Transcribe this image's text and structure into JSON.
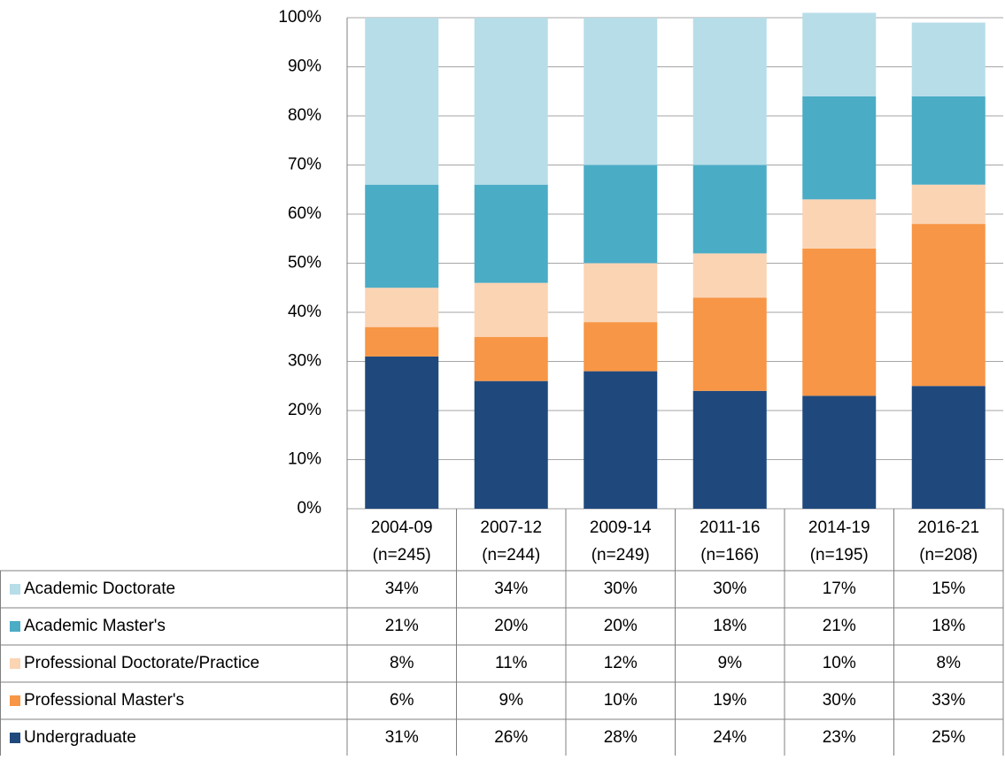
{
  "chart_data": {
    "type": "stacked_bar",
    "categories": [
      "2004-09",
      "2007-12",
      "2009-14",
      "2011-16",
      "2014-19",
      "2016-21"
    ],
    "category_sublabels": [
      "(n=245)",
      "(n=244)",
      "(n=249)",
      "(n=166)",
      "(n=195)",
      "(n=208)"
    ],
    "series": [
      {
        "name": "Undergraduate",
        "color": "#1f497d",
        "values": [
          31,
          26,
          28,
          24,
          23,
          25
        ],
        "value_labels": [
          "31%",
          "26%",
          "28%",
          "24%",
          "23%",
          "25%"
        ]
      },
      {
        "name": "Professional Master's",
        "color": "#f79646",
        "values": [
          6,
          9,
          10,
          19,
          30,
          33
        ],
        "value_labels": [
          "6%",
          "9%",
          "10%",
          "19%",
          "30%",
          "33%"
        ]
      },
      {
        "name": "Professional Doctorate/Practice",
        "color": "#fbd4b4",
        "values": [
          8,
          11,
          12,
          9,
          10,
          8
        ],
        "value_labels": [
          "8%",
          "11%",
          "12%",
          "9%",
          "10%",
          "8%"
        ]
      },
      {
        "name": "Academic Master's",
        "color": "#4bacc6",
        "values": [
          21,
          20,
          20,
          18,
          21,
          18
        ],
        "value_labels": [
          "21%",
          "20%",
          "20%",
          "18%",
          "21%",
          "18%"
        ]
      },
      {
        "name": "Academic Doctorate",
        "color": "#b7dde8",
        "values": [
          34,
          34,
          30,
          30,
          17,
          15
        ],
        "value_labels": [
          "34%",
          "34%",
          "30%",
          "30%",
          "17%",
          "15%"
        ]
      }
    ],
    "ylim": [
      0,
      100
    ],
    "yticks": [
      {
        "value": 0,
        "label": "0%"
      },
      {
        "value": 10,
        "label": "10%"
      },
      {
        "value": 20,
        "label": "20%"
      },
      {
        "value": 30,
        "label": "30%"
      },
      {
        "value": 40,
        "label": "40%"
      },
      {
        "value": 50,
        "label": "50%"
      },
      {
        "value": 60,
        "label": "60%"
      },
      {
        "value": 70,
        "label": "70%"
      },
      {
        "value": 80,
        "label": "80%"
      },
      {
        "value": 90,
        "label": "90%"
      },
      {
        "value": 100,
        "label": "100%"
      }
    ],
    "grid": true
  }
}
